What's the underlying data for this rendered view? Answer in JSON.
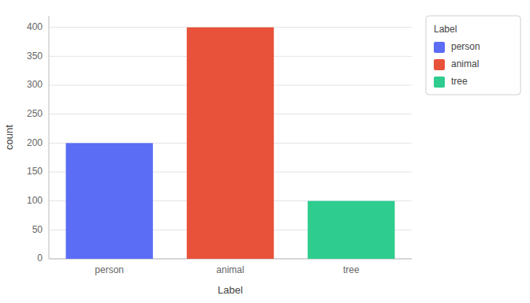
{
  "chart_data": {
    "type": "bar",
    "categories": [
      "person",
      "animal",
      "tree"
    ],
    "values": [
      200,
      400,
      100
    ],
    "colors": [
      "#5b6cf5",
      "#e8523a",
      "#2ecc8e"
    ],
    "xlabel": "Label",
    "ylabel": "count",
    "legend_title": "Label",
    "legend": "right",
    "ylim": [
      0,
      420
    ],
    "yticks": [
      0,
      50,
      100,
      150,
      200,
      250,
      300,
      350,
      400
    ],
    "grid": true
  }
}
